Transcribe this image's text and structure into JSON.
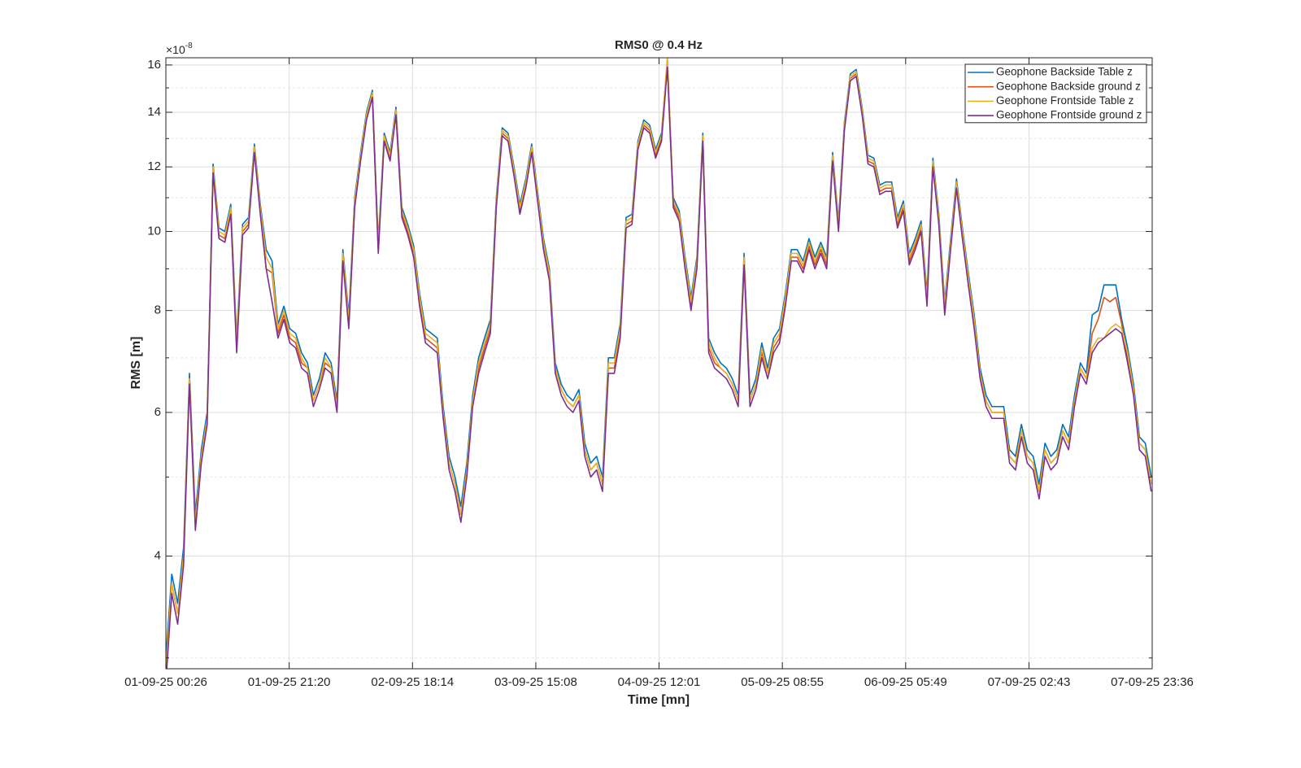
{
  "chart_data": {
    "type": "line",
    "title": "RMS0 @ 0.4 Hz",
    "x_label": "Time [mn]",
    "y_label": "RMS [m]",
    "y_multiplier": {
      "base": "×10",
      "exponent": "-8"
    },
    "yscale": "log",
    "grid": true,
    "minor_grid": true,
    "legend": "northeast",
    "xlim": [
      "01-09-25 00:26",
      "07-09-25 23:36"
    ],
    "xticks": [
      "01-09-25 00:26",
      "01-09-25 21:20",
      "02-09-25 18:14",
      "03-09-25 15:08",
      "04-09-25 12:01",
      "05-09-25 08:55",
      "06-09-25 05:49",
      "07-09-25 02:43",
      "07-09-25 23:36"
    ],
    "ylim": [
      2.91,
      16.33
    ],
    "yticks": [
      4,
      6,
      8,
      10,
      12,
      14,
      16
    ],
    "yminorticks": [
      3,
      5,
      7,
      9,
      11,
      13,
      15
    ],
    "x": [
      "01-09-25 00:26",
      "01-09-25 01:26",
      "01-09-25 02:26",
      "01-09-25 03:26",
      "01-09-25 04:26",
      "01-09-25 05:26",
      "01-09-25 06:26",
      "01-09-25 07:26",
      "01-09-25 08:26",
      "01-09-25 09:26",
      "01-09-25 10:26",
      "01-09-25 11:26",
      "01-09-25 12:26",
      "01-09-25 13:26",
      "01-09-25 14:26",
      "01-09-25 15:26",
      "01-09-25 16:26",
      "01-09-25 17:26",
      "01-09-25 18:26",
      "01-09-25 19:26",
      "01-09-25 20:26",
      "01-09-25 21:26",
      "01-09-25 22:26",
      "01-09-25 23:26",
      "02-09-25 00:26",
      "02-09-25 01:26",
      "02-09-25 02:26",
      "02-09-25 03:26",
      "02-09-25 04:26",
      "02-09-25 05:26",
      "02-09-25 06:26",
      "02-09-25 07:26",
      "02-09-25 08:26",
      "02-09-25 09:26",
      "02-09-25 10:26",
      "02-09-25 11:26",
      "02-09-25 12:26",
      "02-09-25 13:26",
      "02-09-25 14:26",
      "02-09-25 15:26",
      "02-09-25 16:26",
      "02-09-25 17:26",
      "02-09-25 18:26",
      "02-09-25 19:26",
      "02-09-25 20:26",
      "02-09-25 21:26",
      "02-09-25 22:26",
      "02-09-25 23:26",
      "03-09-25 00:26",
      "03-09-25 01:26",
      "03-09-25 02:26",
      "03-09-25 03:26",
      "03-09-25 04:26",
      "03-09-25 05:26",
      "03-09-25 06:26",
      "03-09-25 07:26",
      "03-09-25 08:26",
      "03-09-25 09:26",
      "03-09-25 10:26",
      "03-09-25 11:26",
      "03-09-25 12:26",
      "03-09-25 13:26",
      "03-09-25 14:26",
      "03-09-25 15:26",
      "03-09-25 16:26",
      "03-09-25 17:26",
      "03-09-25 18:26",
      "03-09-25 19:26",
      "03-09-25 20:26",
      "03-09-25 21:26",
      "03-09-25 22:26",
      "03-09-25 23:26",
      "04-09-25 00:26",
      "04-09-25 01:26",
      "04-09-25 02:26",
      "04-09-25 03:26",
      "04-09-25 04:26",
      "04-09-25 05:26",
      "04-09-25 06:26",
      "04-09-25 07:26",
      "04-09-25 08:26",
      "04-09-25 09:26",
      "04-09-25 10:26",
      "04-09-25 11:26",
      "04-09-25 12:26",
      "04-09-25 13:26",
      "04-09-25 14:26",
      "04-09-25 15:26",
      "04-09-25 16:26",
      "04-09-25 17:26",
      "04-09-25 18:26",
      "04-09-25 19:26",
      "04-09-25 20:26",
      "04-09-25 21:26",
      "04-09-25 22:26",
      "04-09-25 23:26",
      "05-09-25 00:26",
      "05-09-25 01:26",
      "05-09-25 02:26",
      "05-09-25 03:26",
      "05-09-25 04:26",
      "05-09-25 05:26",
      "05-09-25 06:26",
      "05-09-25 07:26",
      "05-09-25 08:26",
      "05-09-25 09:26",
      "05-09-25 10:26",
      "05-09-25 11:26",
      "05-09-25 12:26",
      "05-09-25 13:26",
      "05-09-25 14:26",
      "05-09-25 15:26",
      "05-09-25 16:26",
      "05-09-25 17:26",
      "05-09-25 18:26",
      "05-09-25 19:26",
      "05-09-25 20:26",
      "05-09-25 21:26",
      "05-09-25 22:26",
      "05-09-25 23:26",
      "06-09-25 00:26",
      "06-09-25 01:26",
      "06-09-25 02:26",
      "06-09-25 03:26",
      "06-09-25 04:26",
      "06-09-25 05:26",
      "06-09-25 06:26",
      "06-09-25 07:26",
      "06-09-25 08:26",
      "06-09-25 09:26",
      "06-09-25 10:26",
      "06-09-25 11:26",
      "06-09-25 12:26",
      "06-09-25 13:26",
      "06-09-25 14:26",
      "06-09-25 15:26",
      "06-09-25 16:26",
      "06-09-25 17:26",
      "06-09-25 18:26",
      "06-09-25 19:26",
      "06-09-25 20:26",
      "06-09-25 21:26",
      "06-09-25 22:26",
      "06-09-25 23:26",
      "07-09-25 00:26",
      "07-09-25 01:26",
      "07-09-25 02:26",
      "07-09-25 03:26",
      "07-09-25 04:26",
      "07-09-25 05:26",
      "07-09-25 06:26",
      "07-09-25 07:26",
      "07-09-25 08:26",
      "07-09-25 09:26",
      "07-09-25 10:26",
      "07-09-25 11:26",
      "07-09-25 12:26",
      "07-09-25 13:26",
      "07-09-25 14:26",
      "07-09-25 15:26",
      "07-09-25 16:26",
      "07-09-25 17:26",
      "07-09-25 18:26",
      "07-09-25 19:26",
      "07-09-25 20:26",
      "07-09-25 21:26",
      "07-09-25 22:26",
      "07-09-25 23:26"
    ],
    "series": [
      {
        "name": "Geophone Backside Table z",
        "color": "#0072BD",
        "values": [
          3.0,
          3.8,
          3.5,
          4.1,
          6.7,
          4.5,
          5.4,
          6.0,
          12.1,
          10.1,
          10.0,
          10.8,
          7.4,
          10.2,
          10.4,
          12.8,
          10.8,
          9.5,
          9.2,
          7.7,
          8.1,
          7.6,
          7.5,
          7.1,
          6.9,
          6.3,
          6.6,
          7.1,
          6.9,
          6.2,
          9.5,
          7.9,
          11.0,
          12.5,
          14.0,
          14.9,
          9.7,
          13.2,
          12.5,
          14.2,
          10.7,
          10.2,
          9.6,
          8.4,
          7.6,
          7.5,
          7.4,
          6.1,
          5.3,
          5.0,
          4.6,
          5.2,
          6.3,
          7.0,
          7.4,
          7.8,
          11.0,
          13.4,
          13.2,
          12.0,
          10.8,
          11.6,
          12.8,
          11.2,
          9.8,
          9.0,
          6.9,
          6.5,
          6.3,
          6.2,
          6.4,
          5.5,
          5.2,
          5.3,
          5.0,
          7.0,
          7.0,
          7.7,
          10.4,
          10.5,
          12.9,
          13.7,
          13.5,
          12.6,
          13.2,
          16.2,
          11.0,
          10.6,
          9.3,
          8.3,
          9.3,
          13.2,
          7.4,
          7.1,
          6.9,
          6.8,
          6.6,
          6.3,
          9.4,
          6.3,
          6.6,
          7.3,
          6.8,
          7.4,
          7.6,
          8.4,
          9.5,
          9.5,
          9.2,
          9.8,
          9.3,
          9.7,
          9.3,
          12.5,
          10.3,
          13.6,
          15.6,
          15.8,
          14.2,
          12.4,
          12.3,
          11.4,
          11.5,
          11.5,
          10.4,
          10.9,
          9.4,
          9.8,
          10.3,
          8.4,
          12.3,
          10.5,
          8.2,
          9.8,
          11.6,
          10.1,
          8.9,
          7.9,
          6.8,
          6.3,
          6.1,
          6.1,
          6.1,
          5.4,
          5.3,
          5.8,
          5.4,
          5.3,
          4.9,
          5.5,
          5.3,
          5.4,
          5.8,
          5.6,
          6.3,
          6.9,
          6.7,
          7.9,
          8.0,
          8.6,
          8.6,
          8.6,
          7.8,
          7.2,
          6.5,
          5.6,
          5.5,
          5.0
        ]
      },
      {
        "name": "Geophone Backside ground z",
        "color": "#D95319",
        "values": [
          2.9,
          3.7,
          3.4,
          4.0,
          6.6,
          4.4,
          5.3,
          5.9,
          11.9,
          9.9,
          9.8,
          10.6,
          7.2,
          10.0,
          10.2,
          12.6,
          10.6,
          9.0,
          8.9,
          7.5,
          7.9,
          7.4,
          7.3,
          6.9,
          6.8,
          6.2,
          6.5,
          6.9,
          6.8,
          6.1,
          9.3,
          7.7,
          10.8,
          12.3,
          13.8,
          14.7,
          9.5,
          13.0,
          12.3,
          14.0,
          10.5,
          10.0,
          9.4,
          8.2,
          7.4,
          7.3,
          7.2,
          6.0,
          5.2,
          4.9,
          4.5,
          5.1,
          6.2,
          6.8,
          7.2,
          7.6,
          10.8,
          13.2,
          13.0,
          11.8,
          10.6,
          11.4,
          12.6,
          11.0,
          9.6,
          8.8,
          6.8,
          6.4,
          6.2,
          6.1,
          6.3,
          5.4,
          5.1,
          5.2,
          4.9,
          6.8,
          6.8,
          7.5,
          10.2,
          10.3,
          12.7,
          13.5,
          13.3,
          12.4,
          13.0,
          16.0,
          10.8,
          10.4,
          9.1,
          8.1,
          9.1,
          13.0,
          7.2,
          6.9,
          6.8,
          6.7,
          6.5,
          6.2,
          9.2,
          6.2,
          6.5,
          7.1,
          6.7,
          7.2,
          7.4,
          8.2,
          9.3,
          9.3,
          9.0,
          9.6,
          9.1,
          9.5,
          9.1,
          12.3,
          10.1,
          13.4,
          15.4,
          15.6,
          14.0,
          12.2,
          12.1,
          11.2,
          11.3,
          11.3,
          10.2,
          10.7,
          9.2,
          9.6,
          10.1,
          8.2,
          12.1,
          10.3,
          8.0,
          9.6,
          11.4,
          9.9,
          8.7,
          7.7,
          6.7,
          6.2,
          6.0,
          6.0,
          6.0,
          5.3,
          5.2,
          5.7,
          5.3,
          5.2,
          4.8,
          5.4,
          5.2,
          5.3,
          5.7,
          5.5,
          6.2,
          6.8,
          6.6,
          7.5,
          7.8,
          8.3,
          8.2,
          8.3,
          7.7,
          7.0,
          6.4,
          5.5,
          5.4,
          4.9
        ]
      },
      {
        "name": "Geophone Frontside Table z",
        "color": "#EDB120",
        "values": [
          2.9,
          3.7,
          3.4,
          4.0,
          6.6,
          4.4,
          5.3,
          5.9,
          12.0,
          10.0,
          9.9,
          10.7,
          7.3,
          10.1,
          10.3,
          12.7,
          10.7,
          9.3,
          9.0,
          7.6,
          8.0,
          7.5,
          7.4,
          7.0,
          6.8,
          6.2,
          6.5,
          7.0,
          6.8,
          6.1,
          9.4,
          7.8,
          10.9,
          12.4,
          13.9,
          14.8,
          9.6,
          13.1,
          12.4,
          14.1,
          10.6,
          10.1,
          9.5,
          8.3,
          7.5,
          7.4,
          7.3,
          6.0,
          5.2,
          4.9,
          4.5,
          5.1,
          6.2,
          6.9,
          7.3,
          7.7,
          10.9,
          13.3,
          13.1,
          11.9,
          10.7,
          11.5,
          12.7,
          11.1,
          9.7,
          8.9,
          6.8,
          6.4,
          6.2,
          6.1,
          6.3,
          5.4,
          5.1,
          5.2,
          4.9,
          6.9,
          6.9,
          7.6,
          10.3,
          10.4,
          12.8,
          13.6,
          13.4,
          12.5,
          13.1,
          16.4,
          10.9,
          10.5,
          9.2,
          8.2,
          9.2,
          13.1,
          7.3,
          7.0,
          6.8,
          6.7,
          6.5,
          6.2,
          9.3,
          6.2,
          6.5,
          7.2,
          6.7,
          7.3,
          7.5,
          8.3,
          9.4,
          9.4,
          9.1,
          9.7,
          9.2,
          9.6,
          9.2,
          12.4,
          10.2,
          13.5,
          15.5,
          15.7,
          14.1,
          12.3,
          12.2,
          11.3,
          11.4,
          11.4,
          10.3,
          10.8,
          9.3,
          9.7,
          10.2,
          8.3,
          12.2,
          10.4,
          8.1,
          9.7,
          11.5,
          10.0,
          8.8,
          7.8,
          6.7,
          6.2,
          6.0,
          6.0,
          6.0,
          5.3,
          5.2,
          5.7,
          5.3,
          5.2,
          4.8,
          5.4,
          5.2,
          5.3,
          5.7,
          5.5,
          6.2,
          6.8,
          6.6,
          7.2,
          7.4,
          7.4,
          7.6,
          7.7,
          7.6,
          7.1,
          6.4,
          5.5,
          5.4,
          4.9
        ]
      },
      {
        "name": "Geophone Frontside ground z",
        "color": "#7E2F8E",
        "values": [
          2.8,
          3.6,
          3.3,
          3.9,
          6.5,
          4.3,
          5.2,
          5.8,
          11.8,
          9.8,
          9.7,
          10.5,
          7.1,
          9.9,
          10.1,
          12.5,
          10.5,
          9.0,
          8.2,
          7.4,
          7.8,
          7.3,
          7.2,
          6.8,
          6.7,
          6.1,
          6.4,
          6.8,
          6.7,
          6.0,
          9.2,
          7.6,
          10.7,
          12.2,
          13.7,
          14.6,
          9.4,
          12.9,
          12.2,
          13.9,
          10.4,
          9.9,
          9.3,
          8.1,
          7.3,
          7.2,
          7.1,
          5.9,
          5.1,
          4.8,
          4.4,
          5.0,
          6.1,
          6.7,
          7.1,
          7.5,
          10.7,
          13.1,
          12.9,
          11.7,
          10.5,
          11.3,
          12.5,
          10.9,
          9.5,
          8.7,
          6.7,
          6.3,
          6.1,
          6.0,
          6.2,
          5.3,
          5.0,
          5.1,
          4.8,
          6.7,
          6.7,
          7.4,
          10.1,
          10.2,
          12.6,
          13.4,
          13.2,
          12.3,
          12.9,
          15.9,
          10.7,
          10.3,
          9.0,
          8.0,
          9.0,
          12.9,
          7.1,
          6.8,
          6.7,
          6.6,
          6.4,
          6.1,
          9.1,
          6.1,
          6.4,
          7.0,
          6.6,
          7.1,
          7.3,
          8.1,
          9.2,
          9.2,
          8.9,
          9.5,
          9.0,
          9.4,
          9.0,
          12.2,
          10.0,
          13.3,
          15.3,
          15.5,
          13.9,
          12.1,
          12.0,
          11.1,
          11.2,
          11.2,
          10.1,
          10.6,
          9.1,
          9.5,
          10.0,
          8.1,
          12.0,
          10.2,
          7.9,
          9.5,
          11.3,
          9.8,
          8.6,
          7.6,
          6.6,
          6.1,
          5.9,
          5.9,
          5.9,
          5.2,
          5.1,
          5.6,
          5.2,
          5.1,
          4.7,
          5.3,
          5.1,
          5.2,
          5.6,
          5.4,
          6.1,
          6.7,
          6.5,
          7.1,
          7.3,
          7.4,
          7.5,
          7.6,
          7.5,
          6.9,
          6.3,
          5.4,
          5.3,
          4.8
        ]
      }
    ]
  }
}
